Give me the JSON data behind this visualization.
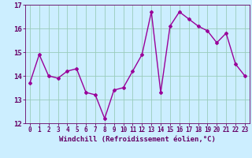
{
  "x": [
    0,
    1,
    2,
    3,
    4,
    5,
    6,
    7,
    8,
    9,
    10,
    11,
    12,
    13,
    14,
    15,
    16,
    17,
    18,
    19,
    20,
    21,
    22,
    23
  ],
  "y": [
    13.7,
    14.9,
    14.0,
    13.9,
    14.2,
    14.3,
    13.3,
    13.2,
    12.2,
    13.4,
    13.5,
    14.2,
    14.9,
    16.7,
    13.3,
    16.1,
    16.7,
    16.4,
    16.1,
    15.9,
    15.4,
    15.8,
    14.5,
    14.0
  ],
  "line_color": "#990099",
  "marker": "D",
  "marker_size": 2,
  "linewidth": 1.0,
  "xlim": [
    -0.5,
    23.5
  ],
  "ylim": [
    12,
    17
  ],
  "yticks": [
    12,
    13,
    14,
    15,
    16,
    17
  ],
  "xticks": [
    0,
    1,
    2,
    3,
    4,
    5,
    6,
    7,
    8,
    9,
    10,
    11,
    12,
    13,
    14,
    15,
    16,
    17,
    18,
    19,
    20,
    21,
    22,
    23
  ],
  "xlabel": "Windchill (Refroidissement éolien,°C)",
  "bg_color": "#cceeff",
  "grid_color": "#99ccbb",
  "label_color": "#660066",
  "xlabel_fontsize": 6.5,
  "ytick_fontsize": 6.5,
  "xtick_fontsize": 5.5
}
